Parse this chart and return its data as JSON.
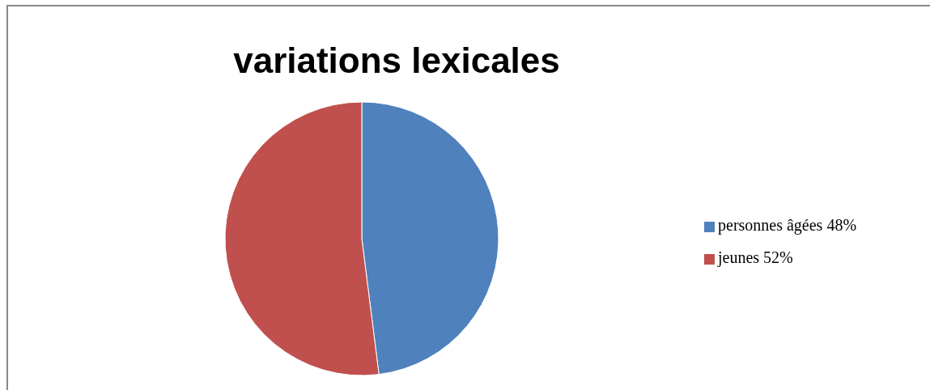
{
  "chart_data": {
    "type": "pie",
    "title": "variations lexicales",
    "categories": [
      "personnes âgées 48%",
      "jeunes 52%"
    ],
    "values": [
      48,
      52
    ],
    "colors": [
      "#4f81bd",
      "#c0504d"
    ],
    "legend": "right"
  }
}
